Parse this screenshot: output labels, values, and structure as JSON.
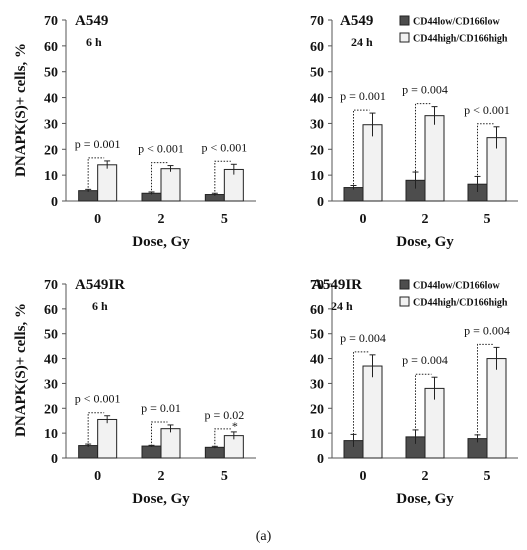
{
  "chart_data": [
    {
      "type": "bar",
      "title": "A549",
      "subtitle": "6 h",
      "xlabel": "Dose, Gy",
      "ylabel": "DNAPK(S)+ cells, %",
      "ylim": [
        0,
        70
      ],
      "yticks": [
        0,
        10,
        20,
        30,
        40,
        50,
        60,
        70
      ],
      "categories": [
        "0",
        "2",
        "5"
      ],
      "series": [
        {
          "name": "CD44low/CD166low",
          "color": "#4d4d4d",
          "values": [
            4,
            3,
            2.5
          ],
          "errors": [
            0.5,
            0.5,
            0.5
          ]
        },
        {
          "name": "CD44high/CD166high",
          "color": "#f2f2f2",
          "values": [
            14,
            12.5,
            12.2
          ],
          "errors": [
            1.5,
            1.2,
            2
          ]
        }
      ],
      "annotations": [
        "p = 0.001",
        "p < 0.001",
        "p < 0.001"
      ],
      "legend": null
    },
    {
      "type": "bar",
      "title": "A549",
      "subtitle": "24 h",
      "xlabel": "Dose, Gy",
      "ylabel": "",
      "ylim": [
        0,
        70
      ],
      "yticks": [
        0,
        10,
        20,
        30,
        40,
        50,
        60,
        70
      ],
      "categories": [
        "0",
        "2",
        "5"
      ],
      "series": [
        {
          "name": "CD44low/CD166low",
          "color": "#4d4d4d",
          "values": [
            5.2,
            8,
            6.5
          ],
          "errors": [
            0.8,
            3.2,
            3
          ]
        },
        {
          "name": "CD44high/CD166high",
          "color": "#f2f2f2",
          "values": [
            29.5,
            33,
            24.5
          ],
          "errors": [
            4.5,
            3.5,
            4.2
          ]
        }
      ],
      "annotations": [
        "p = 0.001",
        "p = 0.004",
        "p < 0.001"
      ],
      "legend": "top-right"
    },
    {
      "type": "bar",
      "title": "A549IR",
      "subtitle": "6 h",
      "xlabel": "Dose, Gy",
      "ylabel": "DNAPK(S)+ cells, %",
      "ylim": [
        0,
        70
      ],
      "yticks": [
        0,
        10,
        20,
        30,
        40,
        50,
        60,
        70
      ],
      "categories": [
        "0",
        "2",
        "5"
      ],
      "series": [
        {
          "name": "CD44low/CD166low",
          "color": "#4d4d4d",
          "values": [
            5,
            4.8,
            4.3
          ],
          "errors": [
            0.6,
            0.3,
            0.4
          ]
        },
        {
          "name": "CD44high/CD166high",
          "color": "#f2f2f2",
          "values": [
            15.5,
            11.8,
            9
          ],
          "errors": [
            1.5,
            1.5,
            1.5
          ]
        }
      ],
      "annotations": [
        "p < 0.001",
        "p = 0.01",
        "p = 0.02"
      ],
      "star": "*",
      "legend": null
    },
    {
      "type": "bar",
      "title": "A549IR",
      "subtitle": "24 h",
      "xlabel": "Dose, Gy",
      "ylabel": "",
      "ylim": [
        0,
        70
      ],
      "yticks": [
        0,
        10,
        20,
        30,
        40,
        50,
        60,
        70
      ],
      "categories": [
        "0",
        "2",
        "5"
      ],
      "series": [
        {
          "name": "CD44low/CD166low",
          "color": "#4d4d4d",
          "values": [
            7,
            8.5,
            7.8
          ],
          "errors": [
            2.5,
            2.8,
            1.5
          ]
        },
        {
          "name": "CD44high/CD166high",
          "color": "#f2f2f2",
          "values": [
            37,
            28,
            40
          ],
          "errors": [
            4.5,
            4.5,
            4.5
          ]
        }
      ],
      "annotations": [
        "p = 0.004",
        "p = 0.004",
        "p = 0.004"
      ],
      "legend": "top-right"
    }
  ],
  "caption": "(a)"
}
